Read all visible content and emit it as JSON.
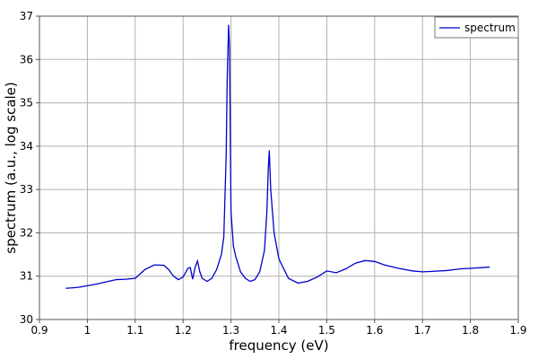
{
  "chart_data": {
    "type": "line",
    "title": "",
    "xlabel": "frequency (eV)",
    "ylabel": "spectrum (a.u., log scale)",
    "xlim": [
      0.9,
      1.9
    ],
    "ylim": [
      30,
      37
    ],
    "xticks": [
      0.9,
      1.0,
      1.1,
      1.2,
      1.3,
      1.4,
      1.5,
      1.6,
      1.7,
      1.8,
      1.9
    ],
    "xtick_labels": [
      "0.9",
      "1",
      "1.1",
      "1.2",
      "1.3",
      "1.4",
      "1.5",
      "1.6",
      "1.7",
      "1.8",
      "1.9"
    ],
    "yticks": [
      30,
      31,
      32,
      33,
      34,
      35,
      36,
      37
    ],
    "ytick_labels": [
      "30",
      "31",
      "32",
      "33",
      "34",
      "35",
      "36",
      "37"
    ],
    "grid": true,
    "legend_position": "top-right",
    "series": [
      {
        "name": "spectrum",
        "color": "#0000cc",
        "x": [
          0.955,
          0.98,
          1.0,
          1.02,
          1.04,
          1.06,
          1.08,
          1.1,
          1.12,
          1.14,
          1.16,
          1.17,
          1.18,
          1.19,
          1.2,
          1.21,
          1.215,
          1.22,
          1.225,
          1.23,
          1.235,
          1.24,
          1.25,
          1.26,
          1.27,
          1.28,
          1.285,
          1.29,
          1.292,
          1.295,
          1.297,
          1.3,
          1.305,
          1.31,
          1.32,
          1.33,
          1.34,
          1.35,
          1.36,
          1.37,
          1.375,
          1.378,
          1.38,
          1.383,
          1.39,
          1.4,
          1.42,
          1.44,
          1.46,
          1.48,
          1.5,
          1.52,
          1.54,
          1.56,
          1.58,
          1.6,
          1.62,
          1.65,
          1.68,
          1.7,
          1.72,
          1.75,
          1.78,
          1.8,
          1.84
        ],
        "y": [
          30.72,
          30.74,
          30.78,
          30.82,
          30.87,
          30.92,
          30.93,
          30.95,
          31.15,
          31.26,
          31.25,
          31.15,
          31.0,
          30.92,
          30.98,
          31.18,
          31.2,
          30.93,
          31.2,
          31.35,
          31.1,
          30.95,
          30.88,
          30.95,
          31.15,
          31.5,
          31.9,
          33.8,
          35.5,
          36.8,
          36.3,
          32.5,
          31.7,
          31.45,
          31.1,
          30.95,
          30.88,
          30.92,
          31.1,
          31.6,
          32.5,
          33.5,
          33.9,
          33.0,
          32.0,
          31.4,
          30.95,
          30.84,
          30.88,
          30.98,
          31.12,
          31.08,
          31.17,
          31.3,
          31.36,
          31.34,
          31.26,
          31.18,
          31.12,
          31.1,
          31.11,
          31.13,
          31.17,
          31.18,
          31.21
        ]
      }
    ]
  }
}
